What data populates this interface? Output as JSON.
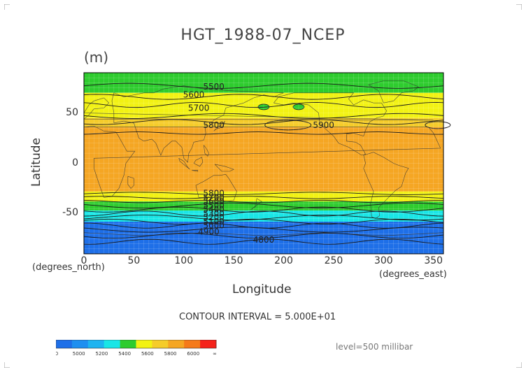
{
  "title": "HGT_1988-07_NCEP",
  "units": "(m)",
  "chart_data": {
    "type": "heatmap",
    "title": "HGT_1988-07_NCEP",
    "units": "(m)",
    "xlabel": "Longitude",
    "ylabel": "Latitude",
    "xlim": [
      0,
      360
    ],
    "ylim": [
      -90,
      90
    ],
    "x_ticks": [
      "0",
      "50",
      "100",
      "150",
      "200",
      "250",
      "300",
      "350"
    ],
    "y_ticks": [
      "50",
      "0",
      "-50"
    ],
    "x_unit_label": "(degrees_east)",
    "y_unit_label": "(degrees_north)",
    "grid": true,
    "bands": [
      {
        "lat_top": 90,
        "lat_bottom": 70,
        "range": "5400-5600",
        "color": "#2ecc2e"
      },
      {
        "lat_top": 70,
        "lat_bottom": 45,
        "range": "5600-5800",
        "color": "#f2f213"
      },
      {
        "lat_top": 45,
        "lat_bottom": 36,
        "range": "5800-5900",
        "color": "#f5cc2a"
      },
      {
        "lat_top": 36,
        "lat_bottom": -28,
        "range": "5800-6000",
        "color": "#f5a623"
      },
      {
        "lat_top": -28,
        "lat_bottom": -38,
        "range": "5600-5800",
        "color": "#f2f213"
      },
      {
        "lat_top": -38,
        "lat_bottom": -47,
        "range": "5400-5600",
        "color": "#2ecc2e"
      },
      {
        "lat_top": -47,
        "lat_bottom": -58,
        "range": "5200-5400",
        "color": "#19e6e6"
      },
      {
        "lat_top": -58,
        "lat_bottom": -90,
        "range": "0-5200",
        "color": "#1e6fe8"
      }
    ],
    "contour_labels": [
      {
        "text": "5500",
        "lon": 130,
        "lat": 76
      },
      {
        "text": "5600",
        "lon": 110,
        "lat": 68
      },
      {
        "text": "5700",
        "lon": 115,
        "lat": 55
      },
      {
        "text": "5800",
        "lon": 130,
        "lat": 38
      },
      {
        "text": "5900",
        "lon": 240,
        "lat": 38
      },
      {
        "text": "5800",
        "lon": 130,
        "lat": -30
      },
      {
        "text": "5700",
        "lon": 130,
        "lat": -34
      },
      {
        "text": "5600",
        "lon": 130,
        "lat": -38
      },
      {
        "text": "5500",
        "lon": 130,
        "lat": -42
      },
      {
        "text": "5400",
        "lon": 130,
        "lat": -46
      },
      {
        "text": "5300",
        "lon": 130,
        "lat": -50
      },
      {
        "text": "5200",
        "lon": 130,
        "lat": -54
      },
      {
        "text": "5100",
        "lon": 130,
        "lat": -58
      },
      {
        "text": "5000",
        "lon": 130,
        "lat": -62
      },
      {
        "text": "4900",
        "lon": 125,
        "lat": -68
      },
      {
        "text": "4800",
        "lon": 180,
        "lat": -76
      }
    ],
    "colorbar": {
      "ticks": [
        "0",
        "5000",
        "5200",
        "5400",
        "5600",
        "5800",
        "6000",
        "∞"
      ],
      "colors": [
        "#1e6fe8",
        "#1e8ff0",
        "#1eb4f0",
        "#19e6e6",
        "#2ecc2e",
        "#f2f213",
        "#f5cc2a",
        "#f5a623",
        "#f57a1a",
        "#f5221a"
      ]
    },
    "contour_interval": "CONTOUR INTERVAL = 5.000E+01",
    "level": "level=500 millibar"
  }
}
